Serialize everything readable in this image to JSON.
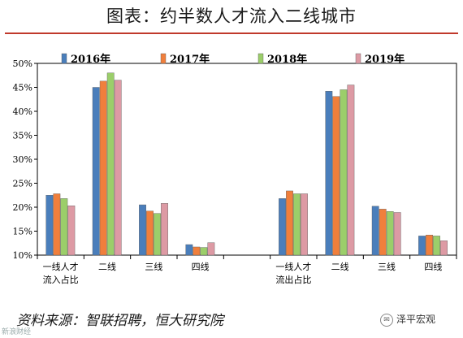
{
  "title": "图表：约半数人才流入二线城市",
  "source": "资料来源：智联招聘，恒大研究院",
  "watermark": "泽平宏观",
  "corner_mark": "新浪财经",
  "chart_data": {
    "type": "bar",
    "ylim": [
      10,
      50
    ],
    "yticks": [
      10,
      15,
      20,
      25,
      30,
      35,
      40,
      45,
      50
    ],
    "ytick_labels": [
      "10%",
      "15%",
      "20%",
      "25%",
      "30%",
      "35%",
      "40%",
      "45%",
      "50%"
    ],
    "legend_position": "top",
    "categories": [
      [
        "一线人才",
        "流入占比"
      ],
      [
        "二线"
      ],
      [
        "三线"
      ],
      [
        "四线"
      ],
      [
        "一线人才",
        "流出占比"
      ],
      [
        "二线"
      ],
      [
        "三线"
      ],
      [
        "四线"
      ]
    ],
    "series": [
      {
        "name": "2016年",
        "color": "#4a7ebb",
        "values": [
          22.5,
          45.0,
          20.5,
          12.2,
          21.8,
          44.2,
          20.2,
          14.0
        ]
      },
      {
        "name": "2017年",
        "color": "#f07f3c",
        "values": [
          22.8,
          46.3,
          19.2,
          11.7,
          23.4,
          43.1,
          19.6,
          14.2
        ]
      },
      {
        "name": "2018年",
        "color": "#9bce6a",
        "values": [
          21.8,
          48.0,
          18.7,
          11.6,
          22.8,
          44.5,
          19.1,
          14.0
        ]
      },
      {
        "name": "2019年",
        "color": "#dd9aa4",
        "values": [
          20.3,
          46.5,
          20.8,
          12.6,
          22.8,
          45.5,
          18.9,
          13.0
        ]
      }
    ]
  }
}
